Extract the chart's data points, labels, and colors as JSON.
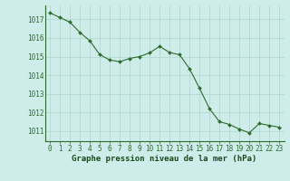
{
  "x": [
    0,
    1,
    2,
    3,
    4,
    5,
    6,
    7,
    8,
    9,
    10,
    11,
    12,
    13,
    14,
    15,
    16,
    17,
    18,
    19,
    20,
    21,
    22,
    23
  ],
  "y": [
    1017.35,
    1017.1,
    1016.85,
    1016.3,
    1015.85,
    1015.1,
    1014.82,
    1014.72,
    1014.9,
    1015.0,
    1015.2,
    1015.55,
    1015.22,
    1015.1,
    1014.35,
    1013.3,
    1012.2,
    1011.5,
    1011.35,
    1011.1,
    1010.9,
    1011.4,
    1011.3,
    1011.2
  ],
  "line_color": "#2d6b2d",
  "marker_color": "#2d6b2d",
  "bg_color": "#ceecea",
  "grid_color": "#aed4cc",
  "xlabel_ticks": [
    "0",
    "1",
    "2",
    "3",
    "4",
    "5",
    "6",
    "7",
    "8",
    "9",
    "10",
    "11",
    "12",
    "13",
    "14",
    "15",
    "16",
    "17",
    "18",
    "19",
    "20",
    "21",
    "22",
    "23"
  ],
  "ytick_labels": [
    "1011",
    "1012",
    "1013",
    "1014",
    "1015",
    "1016",
    "1017"
  ],
  "ylim": [
    1010.45,
    1017.75
  ],
  "xlim": [
    -0.5,
    23.5
  ],
  "tick_color": "#2d6b2d",
  "title": "Graphe pression niveau de la mer (hPa)",
  "title_color": "#1a4a1a",
  "title_fontsize": 6.5,
  "tick_fontsize": 5.5,
  "axis_color": "#2d6b2d"
}
